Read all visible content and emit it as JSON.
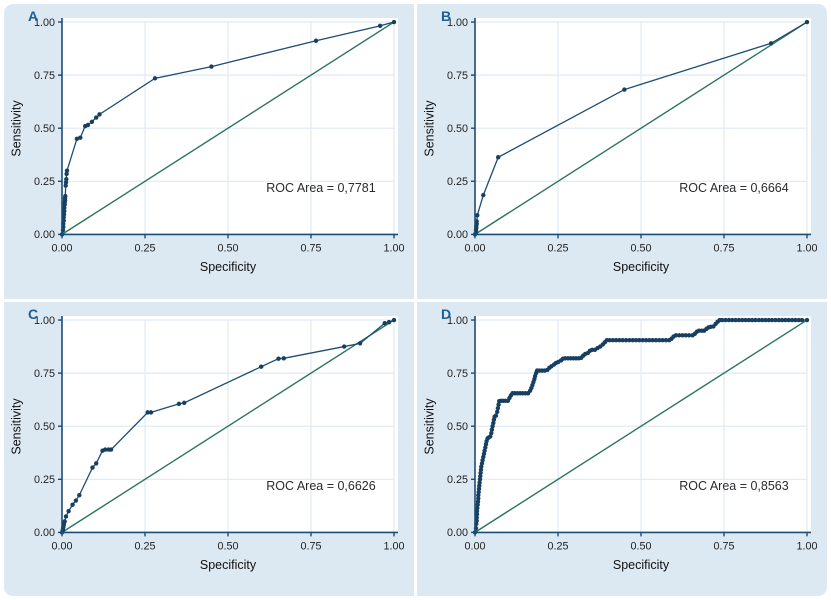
{
  "figure": {
    "background": "#ffffff",
    "panel_background": "#dce8f2",
    "plot_background": "#ffffff",
    "grid_color": "#dfeaf4",
    "axis_color": "#1c4d73",
    "curve_color": "#1c4d73",
    "marker_color": "#173f60",
    "diagonal_color": "#2b7360",
    "text_color": "#1f1f1f",
    "letter_color": "#1c5e96"
  },
  "chart_data": [
    {
      "type": "line",
      "panel": "A",
      "xlabel": "Specificity",
      "ylabel": "Sensitivity",
      "xlim": [
        0,
        1
      ],
      "ylim": [
        0,
        1
      ],
      "xticks": [
        "0.00",
        "0.25",
        "0.50",
        "0.75",
        "1.00"
      ],
      "yticks": [
        "0.00",
        "0.25",
        "0.50",
        "0.75",
        "1.00"
      ],
      "grid": true,
      "annotation": "ROC Area = 0,7781",
      "roc_area": 0.7781,
      "reference_line": {
        "from": [
          0,
          0
        ],
        "to": [
          1,
          1
        ]
      },
      "series": [
        {
          "name": "ROC curve",
          "points": [
            [
              0,
              0
            ],
            [
              0.003,
              0.02
            ],
            [
              0.004,
              0.035
            ],
            [
              0.004,
              0.05
            ],
            [
              0.005,
              0.065
            ],
            [
              0.005,
              0.08
            ],
            [
              0.006,
              0.095
            ],
            [
              0.007,
              0.11
            ],
            [
              0.007,
              0.125
            ],
            [
              0.008,
              0.14
            ],
            [
              0.008,
              0.15
            ],
            [
              0.009,
              0.16
            ],
            [
              0.009,
              0.17
            ],
            [
              0.01,
              0.18
            ],
            [
              0.011,
              0.23
            ],
            [
              0.012,
              0.245
            ],
            [
              0.013,
              0.26
            ],
            [
              0.014,
              0.285
            ],
            [
              0.015,
              0.3
            ],
            [
              0.045,
              0.45
            ],
            [
              0.055,
              0.455
            ],
            [
              0.07,
              0.51
            ],
            [
              0.078,
              0.515
            ],
            [
              0.09,
              0.53
            ],
            [
              0.103,
              0.55
            ],
            [
              0.113,
              0.565
            ],
            [
              0.28,
              0.735
            ],
            [
              0.45,
              0.79
            ],
            [
              0.765,
              0.912
            ],
            [
              0.958,
              0.982
            ],
            [
              1,
              1
            ]
          ]
        }
      ]
    },
    {
      "type": "line",
      "panel": "B",
      "xlabel": "Specificity",
      "ylabel": "Sensitivity",
      "xlim": [
        0,
        1
      ],
      "ylim": [
        0,
        1
      ],
      "xticks": [
        "0.00",
        "0.25",
        "0.50",
        "0.75",
        "1.00"
      ],
      "yticks": [
        "0.00",
        "0.25",
        "0.50",
        "0.75",
        "1.00"
      ],
      "grid": true,
      "annotation": "ROC Area = 0,6664",
      "roc_area": 0.6664,
      "reference_line": {
        "from": [
          0,
          0
        ],
        "to": [
          1,
          1
        ]
      },
      "series": [
        {
          "name": "ROC curve",
          "points": [
            [
              0,
              0
            ],
            [
              0.003,
              0.01
            ],
            [
              0.003,
              0.02
            ],
            [
              0.004,
              0.03
            ],
            [
              0.004,
              0.04
            ],
            [
              0.005,
              0.05
            ],
            [
              0.005,
              0.062
            ],
            [
              0.007,
              0.09
            ],
            [
              0.025,
              0.185
            ],
            [
              0.07,
              0.363
            ],
            [
              0.45,
              0.682
            ],
            [
              0.892,
              0.9
            ],
            [
              1,
              1
            ]
          ]
        }
      ]
    },
    {
      "type": "line",
      "panel": "C",
      "xlabel": "Specificity",
      "ylabel": "Sensitivity",
      "xlim": [
        0,
        1
      ],
      "ylim": [
        0,
        1
      ],
      "xticks": [
        "0.00",
        "0.25",
        "0.50",
        "0.75",
        "1.00"
      ],
      "yticks": [
        "0.00",
        "0.25",
        "0.50",
        "0.75",
        "1.00"
      ],
      "grid": true,
      "annotation": "ROC Area = 0,6626",
      "roc_area": 0.6626,
      "reference_line": {
        "from": [
          0,
          0
        ],
        "to": [
          1,
          1
        ]
      },
      "series": [
        {
          "name": "ROC curve",
          "points": [
            [
              0,
              0
            ],
            [
              0.002,
              0.008
            ],
            [
              0.003,
              0.016
            ],
            [
              0.004,
              0.025
            ],
            [
              0.005,
              0.034
            ],
            [
              0.006,
              0.042
            ],
            [
              0.008,
              0.052
            ],
            [
              0.012,
              0.075
            ],
            [
              0.02,
              0.1
            ],
            [
              0.032,
              0.13
            ],
            [
              0.042,
              0.15
            ],
            [
              0.052,
              0.175
            ],
            [
              0.092,
              0.305
            ],
            [
              0.103,
              0.325
            ],
            [
              0.122,
              0.385
            ],
            [
              0.13,
              0.39
            ],
            [
              0.14,
              0.39
            ],
            [
              0.148,
              0.39
            ],
            [
              0.258,
              0.565
            ],
            [
              0.268,
              0.565
            ],
            [
              0.352,
              0.605
            ],
            [
              0.368,
              0.61
            ],
            [
              0.6,
              0.78
            ],
            [
              0.652,
              0.818
            ],
            [
              0.668,
              0.82
            ],
            [
              0.85,
              0.875
            ],
            [
              0.898,
              0.89
            ],
            [
              0.972,
              0.985
            ],
            [
              0.985,
              0.99
            ],
            [
              1,
              1
            ]
          ]
        }
      ]
    },
    {
      "type": "line",
      "panel": "D",
      "xlabel": "Specificity",
      "ylabel": "Sensitivity",
      "xlim": [
        0,
        1
      ],
      "ylim": [
        0,
        1
      ],
      "xticks": [
        "0.00",
        "0.25",
        "0.50",
        "0.75",
        "1.00"
      ],
      "yticks": [
        "0.00",
        "0.25",
        "0.50",
        "0.75",
        "1.00"
      ],
      "grid": true,
      "annotation": "ROC Area = 0,8563",
      "roc_area": 0.8563,
      "reference_line": {
        "from": [
          0,
          0
        ],
        "to": [
          1,
          1
        ]
      },
      "series": [
        {
          "name": "ROC curve",
          "points": [
            [
              0,
              0
            ],
            [
              0.003,
              0.02
            ],
            [
              0.004,
              0.04
            ],
            [
              0.005,
              0.055
            ],
            [
              0.005,
              0.07
            ],
            [
              0.006,
              0.085
            ],
            [
              0.006,
              0.1
            ],
            [
              0.007,
              0.115
            ],
            [
              0.008,
              0.13
            ],
            [
              0.009,
              0.145
            ],
            [
              0.01,
              0.16
            ],
            [
              0.01,
              0.175
            ],
            [
              0.011,
              0.19
            ],
            [
              0.012,
              0.205
            ],
            [
              0.013,
              0.22
            ],
            [
              0.014,
              0.235
            ],
            [
              0.015,
              0.25
            ],
            [
              0.016,
              0.265
            ],
            [
              0.017,
              0.28
            ],
            [
              0.018,
              0.295
            ],
            [
              0.019,
              0.31
            ],
            [
              0.021,
              0.325
            ],
            [
              0.023,
              0.34
            ],
            [
              0.025,
              0.355
            ],
            [
              0.027,
              0.37
            ],
            [
              0.029,
              0.385
            ],
            [
              0.031,
              0.4
            ],
            [
              0.033,
              0.415
            ],
            [
              0.035,
              0.43
            ],
            [
              0.038,
              0.443
            ],
            [
              0.042,
              0.447
            ],
            [
              0.046,
              0.452
            ],
            [
              0.049,
              0.468
            ],
            [
              0.051,
              0.484
            ],
            [
              0.053,
              0.5
            ],
            [
              0.055,
              0.515
            ],
            [
              0.057,
              0.53
            ],
            [
              0.059,
              0.545
            ],
            [
              0.063,
              0.55
            ],
            [
              0.067,
              0.568
            ],
            [
              0.069,
              0.585
            ],
            [
              0.071,
              0.602
            ],
            [
              0.073,
              0.618
            ],
            [
              0.078,
              0.62
            ],
            [
              0.085,
              0.62
            ],
            [
              0.092,
              0.62
            ],
            [
              0.099,
              0.62
            ],
            [
              0.104,
              0.633
            ],
            [
              0.108,
              0.645
            ],
            [
              0.113,
              0.655
            ],
            [
              0.12,
              0.655
            ],
            [
              0.128,
              0.655
            ],
            [
              0.136,
              0.655
            ],
            [
              0.144,
              0.655
            ],
            [
              0.152,
              0.655
            ],
            [
              0.16,
              0.655
            ],
            [
              0.166,
              0.667
            ],
            [
              0.17,
              0.68
            ],
            [
              0.173,
              0.694
            ],
            [
              0.176,
              0.708
            ],
            [
              0.179,
              0.722
            ],
            [
              0.181,
              0.736
            ],
            [
              0.184,
              0.75
            ],
            [
              0.187,
              0.762
            ],
            [
              0.194,
              0.762
            ],
            [
              0.202,
              0.762
            ],
            [
              0.21,
              0.762
            ],
            [
              0.218,
              0.765
            ],
            [
              0.224,
              0.775
            ],
            [
              0.23,
              0.782
            ],
            [
              0.238,
              0.79
            ],
            [
              0.244,
              0.798
            ],
            [
              0.251,
              0.803
            ],
            [
              0.259,
              0.81
            ],
            [
              0.265,
              0.818
            ],
            [
              0.272,
              0.82
            ],
            [
              0.28,
              0.82
            ],
            [
              0.288,
              0.82
            ],
            [
              0.296,
              0.82
            ],
            [
              0.304,
              0.82
            ],
            [
              0.312,
              0.82
            ],
            [
              0.32,
              0.822
            ],
            [
              0.326,
              0.832
            ],
            [
              0.332,
              0.84
            ],
            [
              0.34,
              0.845
            ],
            [
              0.346,
              0.855
            ],
            [
              0.353,
              0.86
            ],
            [
              0.361,
              0.86
            ],
            [
              0.369,
              0.868
            ],
            [
              0.377,
              0.875
            ],
            [
              0.385,
              0.885
            ],
            [
              0.391,
              0.895
            ],
            [
              0.397,
              0.905
            ],
            [
              0.405,
              0.905
            ],
            [
              0.415,
              0.905
            ],
            [
              0.425,
              0.905
            ],
            [
              0.435,
              0.905
            ],
            [
              0.445,
              0.905
            ],
            [
              0.455,
              0.905
            ],
            [
              0.465,
              0.905
            ],
            [
              0.475,
              0.905
            ],
            [
              0.485,
              0.905
            ],
            [
              0.495,
              0.905
            ],
            [
              0.505,
              0.905
            ],
            [
              0.515,
              0.905
            ],
            [
              0.525,
              0.905
            ],
            [
              0.535,
              0.905
            ],
            [
              0.545,
              0.905
            ],
            [
              0.555,
              0.905
            ],
            [
              0.565,
              0.905
            ],
            [
              0.575,
              0.905
            ],
            [
              0.585,
              0.905
            ],
            [
              0.592,
              0.912
            ],
            [
              0.598,
              0.922
            ],
            [
              0.605,
              0.928
            ],
            [
              0.615,
              0.928
            ],
            [
              0.625,
              0.928
            ],
            [
              0.635,
              0.928
            ],
            [
              0.645,
              0.928
            ],
            [
              0.655,
              0.928
            ],
            [
              0.662,
              0.935
            ],
            [
              0.668,
              0.945
            ],
            [
              0.675,
              0.95
            ],
            [
              0.683,
              0.95
            ],
            [
              0.69,
              0.95
            ],
            [
              0.697,
              0.958
            ],
            [
              0.703,
              0.965
            ],
            [
              0.71,
              0.968
            ],
            [
              0.718,
              0.97
            ],
            [
              0.725,
              0.982
            ],
            [
              0.731,
              0.992
            ],
            [
              0.737,
              1
            ],
            [
              0.745,
              1
            ],
            [
              0.755,
              1
            ],
            [
              0.765,
              1
            ],
            [
              0.775,
              1
            ],
            [
              0.785,
              1
            ],
            [
              0.795,
              1
            ],
            [
              0.805,
              1
            ],
            [
              0.815,
              1
            ],
            [
              0.825,
              1
            ],
            [
              0.835,
              1
            ],
            [
              0.845,
              1
            ],
            [
              0.855,
              1
            ],
            [
              0.865,
              1
            ],
            [
              0.875,
              1
            ],
            [
              0.885,
              1
            ],
            [
              0.895,
              1
            ],
            [
              0.905,
              1
            ],
            [
              0.915,
              1
            ],
            [
              0.925,
              1
            ],
            [
              0.935,
              1
            ],
            [
              0.945,
              1
            ],
            [
              0.955,
              1
            ],
            [
              0.965,
              1
            ],
            [
              0.975,
              1
            ],
            [
              0.985,
              1
            ],
            [
              1,
              1
            ]
          ]
        }
      ]
    }
  ]
}
